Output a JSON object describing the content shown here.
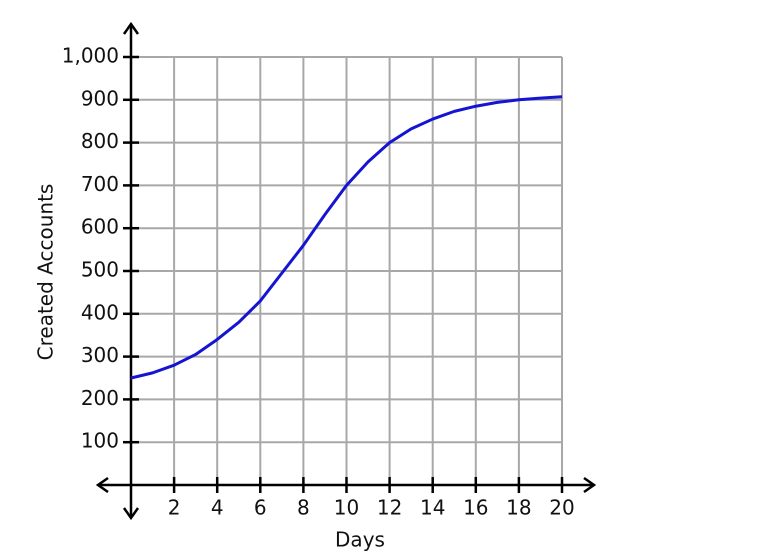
{
  "chart_data": {
    "type": "line",
    "x_label": "Days",
    "y_label": "Created Accounts",
    "x": [
      0,
      1,
      2,
      3,
      4,
      5,
      6,
      7,
      8,
      9,
      10,
      11,
      12,
      13,
      14,
      15,
      16,
      17,
      18,
      19,
      20
    ],
    "series": [
      {
        "color": "#1414d2",
        "values": [
          250,
          262,
          280,
          305,
          340,
          380,
          430,
          495,
          560,
          632,
          700,
          755,
          800,
          832,
          855,
          873,
          885,
          894,
          900,
          904,
          907
        ]
      }
    ],
    "xlim": [
      0,
      20
    ],
    "ylim": [
      0,
      1000
    ],
    "xticks": [
      2,
      4,
      6,
      8,
      10,
      12,
      14,
      16,
      18,
      20
    ],
    "yticks": [
      100,
      200,
      300,
      400,
      500,
      600,
      700,
      800,
      900,
      {
        "value": 1000,
        "label": "1,000"
      }
    ],
    "grid": true
  }
}
